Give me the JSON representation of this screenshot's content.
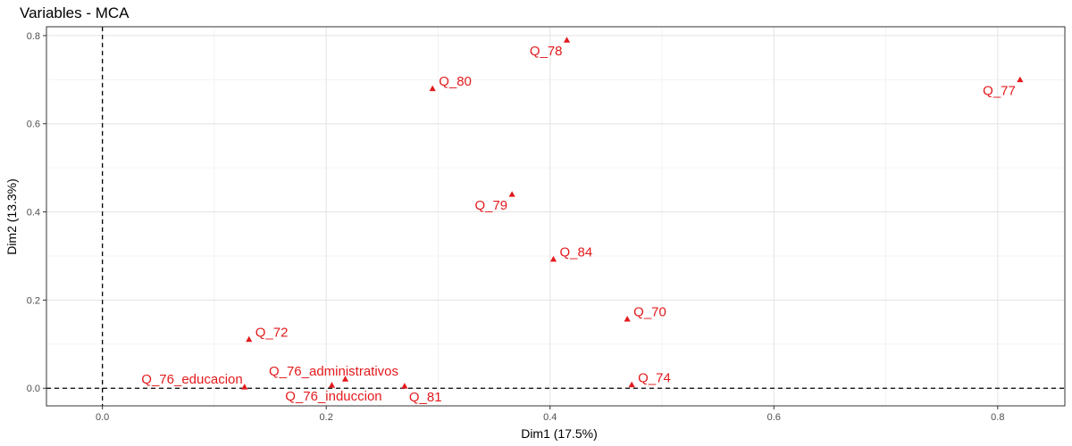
{
  "chart_data": {
    "type": "scatter",
    "title": "Variables - MCA",
    "xlabel": "Dim1 (17.5%)",
    "ylabel": "Dim2 (13.3%)",
    "xlim": [
      -0.05,
      0.86
    ],
    "ylim": [
      -0.04,
      0.82
    ],
    "xticks": [
      0.0,
      0.2,
      0.4,
      0.6,
      0.8
    ],
    "yticks": [
      0.0,
      0.2,
      0.4,
      0.6,
      0.8
    ],
    "xtick_labels": [
      "0.0",
      "0.2",
      "0.4",
      "0.6",
      "0.8"
    ],
    "ytick_labels": [
      "0.0",
      "0.2",
      "0.4",
      "0.6",
      "0.8"
    ],
    "grid": true,
    "reference_lines": {
      "x": 0,
      "y": 0
    },
    "point_color": "#e31a1c",
    "marker": "triangle",
    "points": [
      {
        "label": "Q_78",
        "x": 0.415,
        "y": 0.79,
        "label_pos": "below-left"
      },
      {
        "label": "Q_77",
        "x": 0.82,
        "y": 0.7,
        "label_pos": "below-left"
      },
      {
        "label": "Q_80",
        "x": 0.295,
        "y": 0.68,
        "label_pos": "above-right"
      },
      {
        "label": "Q_79",
        "x": 0.366,
        "y": 0.44,
        "label_pos": "below-left"
      },
      {
        "label": "Q_84",
        "x": 0.403,
        "y": 0.293,
        "label_pos": "above-right"
      },
      {
        "label": "Q_70",
        "x": 0.469,
        "y": 0.157,
        "label_pos": "above-right"
      },
      {
        "label": "Q_72",
        "x": 0.131,
        "y": 0.111,
        "label_pos": "above-right"
      },
      {
        "label": "Q_76_administrativos",
        "x": 0.217,
        "y": 0.021,
        "label_pos": "above"
      },
      {
        "label": "Q_76_educacion",
        "x": 0.127,
        "y": 0.003,
        "label_pos": "left"
      },
      {
        "label": "Q_76_induccion",
        "x": 0.205,
        "y": 0.007,
        "label_pos": "below"
      },
      {
        "label": "Q_81",
        "x": 0.27,
        "y": 0.005,
        "label_pos": "below-right"
      },
      {
        "label": "Q_74",
        "x": 0.473,
        "y": 0.008,
        "label_pos": "above-right"
      }
    ]
  }
}
